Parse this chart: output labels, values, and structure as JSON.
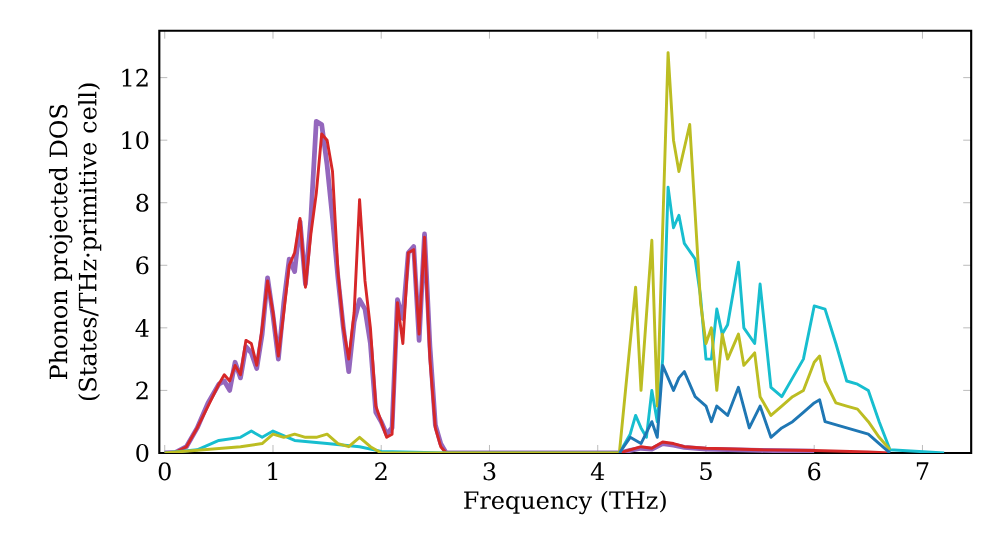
{
  "chart_data": {
    "type": "line",
    "xlabel": "Frequency (THz)",
    "ylabel": "Phonon projected DOS (States/THz·primitive cell)",
    "xlim": [
      -0.05,
      7.45
    ],
    "ylim": [
      0,
      13.5
    ],
    "xticks": [
      0,
      1,
      2,
      3,
      4,
      5,
      6,
      7
    ],
    "yticks": [
      0,
      2,
      4,
      6,
      8,
      10,
      12
    ],
    "grid": false,
    "marker": "none",
    "line_style": "solid",
    "series": [
      {
        "color": "#9467bd",
        "x": [
          0,
          0.1,
          0.2,
          0.3,
          0.4,
          0.5,
          0.55,
          0.6,
          0.65,
          0.7,
          0.75,
          0.8,
          0.85,
          0.9,
          0.95,
          1.0,
          1.05,
          1.1,
          1.15,
          1.2,
          1.25,
          1.3,
          1.35,
          1.4,
          1.45,
          1.5,
          1.55,
          1.6,
          1.65,
          1.7,
          1.75,
          1.8,
          1.85,
          1.9,
          1.95,
          2.0,
          2.05,
          2.1,
          2.15,
          2.2,
          2.25,
          2.3,
          2.35,
          2.4,
          2.45,
          2.5,
          2.55,
          2.6,
          4.2,
          4.3,
          4.4,
          4.5,
          4.6,
          4.7,
          4.8,
          5.0,
          5.5,
          6.0
        ],
        "values": [
          0,
          0.02,
          0.2,
          0.8,
          1.6,
          2.2,
          2.3,
          2.0,
          2.9,
          2.4,
          3.4,
          3.2,
          2.7,
          3.8,
          5.6,
          4.4,
          3.0,
          4.8,
          6.2,
          5.8,
          7.4,
          5.4,
          7.5,
          10.6,
          10.5,
          9.2,
          7.5,
          5.6,
          4.0,
          2.6,
          4.2,
          4.9,
          4.6,
          3.5,
          1.3,
          1.0,
          0.6,
          0.8,
          4.9,
          4.3,
          6.4,
          6.6,
          3.6,
          7.0,
          3.4,
          0.9,
          0.3,
          0,
          0,
          0.08,
          0.15,
          0.12,
          0.3,
          0.25,
          0.18,
          0.12,
          0.08,
          0.06
        ]
      },
      {
        "color": "#d62728",
        "x": [
          0,
          0.1,
          0.2,
          0.3,
          0.4,
          0.5,
          0.55,
          0.6,
          0.65,
          0.7,
          0.75,
          0.8,
          0.85,
          0.9,
          0.95,
          1.0,
          1.05,
          1.1,
          1.15,
          1.2,
          1.25,
          1.3,
          1.35,
          1.4,
          1.45,
          1.5,
          1.55,
          1.6,
          1.65,
          1.7,
          1.75,
          1.8,
          1.85,
          1.9,
          1.95,
          2.0,
          2.05,
          2.1,
          2.15,
          2.2,
          2.25,
          2.3,
          2.35,
          2.4,
          2.45,
          2.5,
          2.55,
          2.6,
          4.2,
          4.3,
          4.4,
          4.5,
          4.6,
          4.7,
          4.8,
          5.0,
          5.5,
          6.0,
          6.5,
          6.7
        ],
        "values": [
          0,
          0.02,
          0.2,
          0.8,
          1.5,
          2.2,
          2.5,
          2.3,
          2.8,
          2.5,
          3.6,
          3.5,
          2.8,
          4.0,
          5.5,
          4.5,
          3.1,
          4.5,
          6.0,
          6.4,
          7.5,
          5.3,
          7.0,
          8.3,
          10.2,
          10.0,
          9.0,
          5.8,
          4.0,
          3.0,
          4.5,
          8.1,
          5.5,
          4.0,
          1.5,
          1.0,
          0.5,
          0.6,
          4.8,
          3.5,
          6.4,
          6.5,
          3.8,
          6.9,
          3.0,
          0.8,
          0.2,
          0,
          0,
          0.1,
          0.2,
          0.15,
          0.35,
          0.3,
          0.2,
          0.15,
          0.1,
          0.08,
          0.03,
          0
        ]
      },
      {
        "color": "#17becf",
        "x": [
          0,
          0.3,
          0.5,
          0.7,
          0.8,
          0.9,
          1.0,
          1.2,
          1.5,
          1.8,
          2.0,
          2.6,
          4.2,
          4.3,
          4.35,
          4.4,
          4.45,
          4.5,
          4.55,
          4.6,
          4.65,
          4.7,
          4.75,
          4.8,
          4.9,
          4.95,
          5.0,
          5.05,
          5.1,
          5.15,
          5.2,
          5.3,
          5.35,
          5.45,
          5.5,
          5.6,
          5.7,
          5.8,
          5.9,
          6.0,
          6.1,
          6.2,
          6.3,
          6.4,
          6.5,
          6.6,
          6.7,
          7.2
        ],
        "values": [
          0,
          0.1,
          0.4,
          0.5,
          0.7,
          0.5,
          0.7,
          0.4,
          0.3,
          0.2,
          0.05,
          0,
          0,
          0.6,
          1.2,
          0.8,
          0.5,
          2.0,
          1.0,
          3.0,
          8.5,
          7.2,
          7.6,
          6.7,
          6.2,
          5.0,
          3.0,
          3.0,
          4.6,
          3.8,
          4.1,
          6.1,
          4.0,
          3.5,
          5.4,
          2.1,
          1.8,
          2.4,
          3.0,
          4.7,
          4.6,
          3.5,
          2.3,
          2.2,
          2.0,
          1.0,
          0.1,
          0
        ]
      },
      {
        "color": "#bcbd22",
        "x": [
          0,
          0.7,
          0.9,
          1.0,
          1.1,
          1.2,
          1.3,
          1.4,
          1.5,
          1.6,
          1.7,
          1.8,
          1.9,
          2.0,
          4.2,
          4.35,
          4.4,
          4.5,
          4.55,
          4.65,
          4.7,
          4.75,
          4.85,
          4.95,
          5.0,
          5.05,
          5.1,
          5.15,
          5.2,
          5.3,
          5.35,
          5.45,
          5.5,
          5.6,
          5.7,
          5.8,
          5.9,
          6.0,
          6.05,
          6.1,
          6.2,
          6.3,
          6.4,
          6.5,
          6.6,
          6.7
        ],
        "values": [
          0,
          0.2,
          0.3,
          0.6,
          0.5,
          0.6,
          0.5,
          0.5,
          0.6,
          0.3,
          0.2,
          0.5,
          0.2,
          0,
          0,
          5.3,
          2.0,
          6.8,
          1.5,
          12.8,
          10.0,
          9.0,
          10.5,
          4.8,
          3.5,
          4.0,
          2.0,
          3.8,
          3.0,
          3.8,
          2.8,
          3.2,
          1.8,
          1.2,
          1.5,
          1.8,
          2.0,
          2.9,
          3.1,
          2.3,
          1.6,
          1.5,
          1.4,
          1.0,
          0.5,
          0.1
        ]
      },
      {
        "color": "#1f77b4",
        "x": [
          4.2,
          4.3,
          4.4,
          4.5,
          4.55,
          4.6,
          4.7,
          4.75,
          4.8,
          4.9,
          5.0,
          5.05,
          5.1,
          5.2,
          5.3,
          5.4,
          5.5,
          5.6,
          5.7,
          5.8,
          5.9,
          6.0,
          6.05,
          6.1,
          6.3,
          6.5,
          6.6,
          6.7
        ],
        "values": [
          0,
          0.5,
          0.3,
          1.0,
          0.5,
          2.8,
          2.0,
          2.4,
          2.6,
          1.8,
          1.5,
          1.0,
          1.5,
          1.2,
          2.1,
          0.8,
          1.5,
          0.5,
          0.8,
          1.0,
          1.3,
          1.6,
          1.7,
          1.0,
          0.8,
          0.6,
          0.3,
          0
        ]
      }
    ]
  }
}
